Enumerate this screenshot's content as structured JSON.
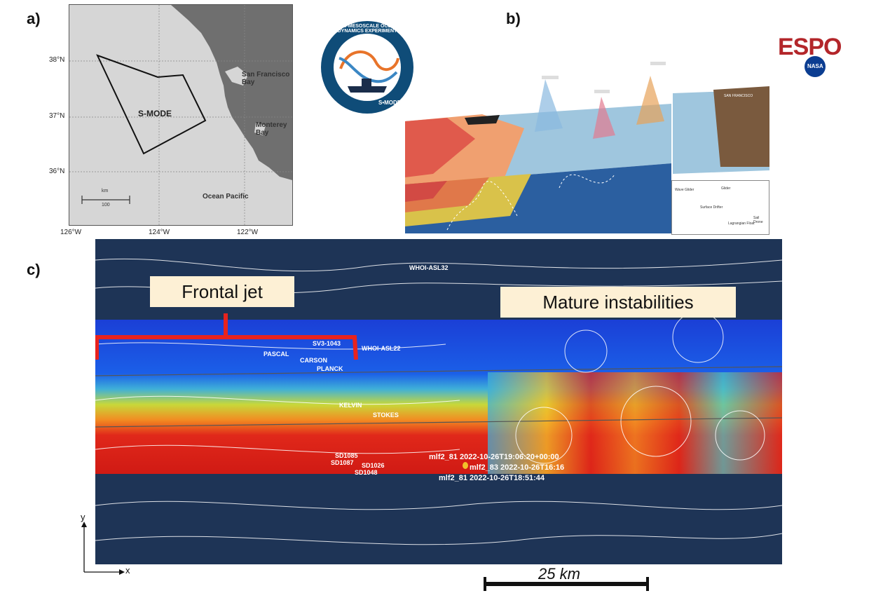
{
  "panels": {
    "a": "a)",
    "b": "b)",
    "c": "c)"
  },
  "map": {
    "lat_labels": [
      "38°N",
      "37°N",
      "36°N"
    ],
    "lon_labels": [
      "126°W",
      "124°W",
      "122°W"
    ],
    "places": {
      "sf": "San Francisco\nBay",
      "monterey": "Monterey\nBay",
      "ocean": "Ocean Pacific"
    },
    "region_label": "S-MODE",
    "scale_unit": "km",
    "scale_value": "100"
  },
  "logo": {
    "text": "SUB-MESOSCALE OCEAN DYNAMICS EXPERIMENT",
    "short": "S•MODE"
  },
  "espo": {
    "text": "ESPO",
    "nasa": "NASA"
  },
  "diagram": {
    "label_sf": "SAN FRANCISCO",
    "legend": {
      "wave_glider": "Wave Glider",
      "glider": "Glider",
      "surface_drifter": "Surface Drifter",
      "lagrangian_float": "Lagrangian Float",
      "sail_drone": "Sail Drone"
    }
  },
  "simulation": {
    "callout_left": "Frontal jet",
    "callout_right": "Mature instabilities",
    "platforms": {
      "whoi32": "WHOI-ASL32",
      "pascal": "PASCAL",
      "sv3": "SV3-1043",
      "carson": "CARSON",
      "planck": "PLANCK",
      "whoi22": "WHOI-ASL22",
      "kelvin": "KELVIN",
      "stokes": "STOKES",
      "sd1085": "SD1085",
      "sd1087": "SD1087",
      "sd1026": "SD1026",
      "sd1048": "SD1048"
    },
    "floats": [
      "mlf2_81 2022-10-26T19:06:20+00:00",
      "mlf2_83 2022-10-26T16:16",
      "mlf2_81 2022-10-26T18:51:44"
    ],
    "colors": {
      "bracket": "#e8231e",
      "cold": "#1b3fd6",
      "warm": "#e0281a"
    }
  },
  "axes": {
    "y": "y",
    "x": "x"
  },
  "scale": {
    "label": "25 km"
  }
}
